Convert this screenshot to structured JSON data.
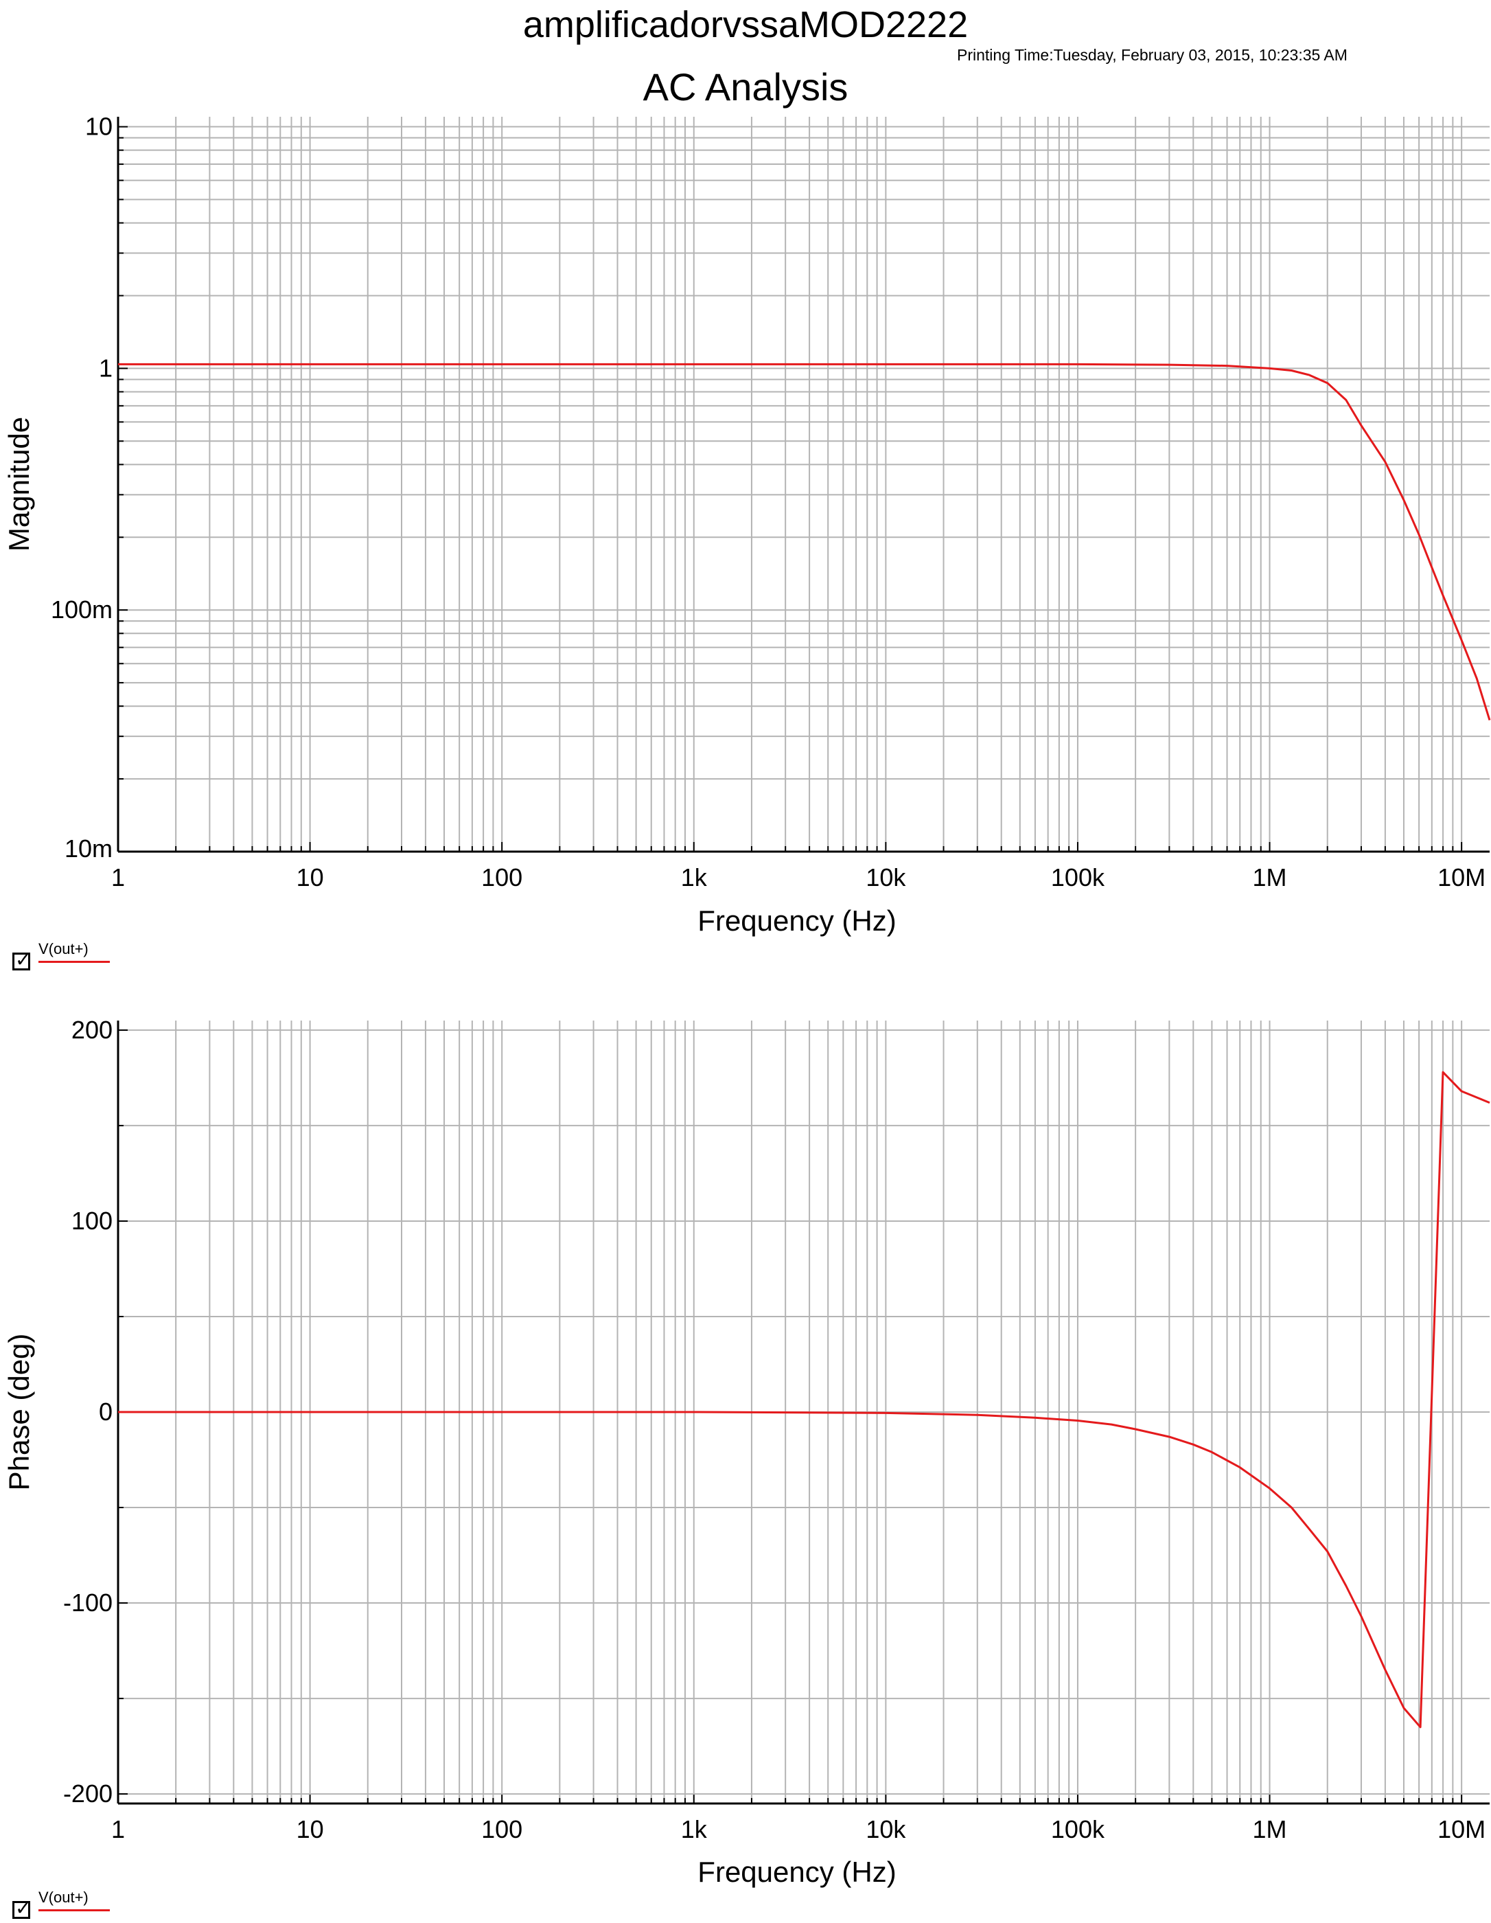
{
  "header": {
    "title": "amplificadorvssaMOD2222",
    "printing_time": "Printing Time:Tuesday, February 03, 2015, 10:23:35 AM",
    "analysis_title": "AC Analysis"
  },
  "colors": {
    "trace": "#e41a1c",
    "grid": "#b4b4b4",
    "axis": "#000000"
  },
  "chart_data": [
    {
      "type": "line",
      "title": "AC Analysis",
      "xlabel": "Frequency (Hz)",
      "ylabel": "Magnitude",
      "xscale": "log",
      "yscale": "log",
      "xlim": [
        1,
        14000000
      ],
      "ylim": [
        0.01,
        11
      ],
      "grid": true,
      "xticks": [
        1,
        10,
        100,
        1000,
        10000,
        100000,
        1000000,
        10000000
      ],
      "xtick_labels": [
        "1",
        "10",
        "100",
        "1k",
        "10k",
        "100k",
        "1M",
        "10M"
      ],
      "yticks": [
        0.01,
        0.1,
        1,
        10
      ],
      "ytick_labels": [
        "10m",
        "100m",
        "1",
        "10"
      ],
      "series": [
        {
          "name": "V(out+)",
          "x": [
            1,
            10,
            100,
            1000,
            10000,
            100000,
            300000,
            600000,
            1000000,
            1300000,
            1600000,
            2000000,
            2500000,
            3000000,
            4000000,
            5000000,
            6000000,
            7000000,
            8000000,
            10000000,
            12000000,
            14000000
          ],
          "y": [
            1.04,
            1.04,
            1.04,
            1.04,
            1.04,
            1.04,
            1.035,
            1.025,
            1.0,
            0.98,
            0.94,
            0.87,
            0.74,
            0.58,
            0.41,
            0.285,
            0.205,
            0.15,
            0.115,
            0.075,
            0.052,
            0.035
          ]
        }
      ]
    },
    {
      "type": "line",
      "xlabel": "Frequency (Hz)",
      "ylabel": "Phase (deg)",
      "xscale": "log",
      "xlim": [
        1,
        14000000
      ],
      "ylim": [
        -205,
        205
      ],
      "grid": true,
      "xticks": [
        1,
        10,
        100,
        1000,
        10000,
        100000,
        1000000,
        10000000
      ],
      "xtick_labels": [
        "1",
        "10",
        "100",
        "1k",
        "10k",
        "100k",
        "1M",
        "10M"
      ],
      "yticks": [
        -200,
        -100,
        0,
        100,
        200
      ],
      "ytick_labels": [
        "-200",
        "-100",
        "0",
        "100",
        "200"
      ],
      "series": [
        {
          "name": "V(out+)",
          "x": [
            1,
            10,
            100,
            1000,
            10000,
            30000,
            60000,
            100000,
            150000,
            200000,
            300000,
            400000,
            500000,
            700000,
            1000000,
            1300000,
            1600000,
            2000000,
            2500000,
            3000000,
            4000000,
            5000000,
            6100000,
            8000000,
            10000000,
            14000000
          ],
          "y": [
            0,
            0,
            0,
            0,
            -0.5,
            -1.5,
            -3,
            -4.5,
            -6.5,
            -9,
            -13,
            -17,
            -21,
            -29,
            -40,
            -50,
            -61,
            -73,
            -91,
            -107,
            -135,
            -155,
            -165,
            178,
            168,
            162
          ]
        }
      ]
    }
  ],
  "legends": [
    {
      "label": "V(out+)",
      "checked": true,
      "check_glyph": "✓"
    },
    {
      "label": "V(out+)",
      "checked": true,
      "check_glyph": "✓"
    }
  ]
}
